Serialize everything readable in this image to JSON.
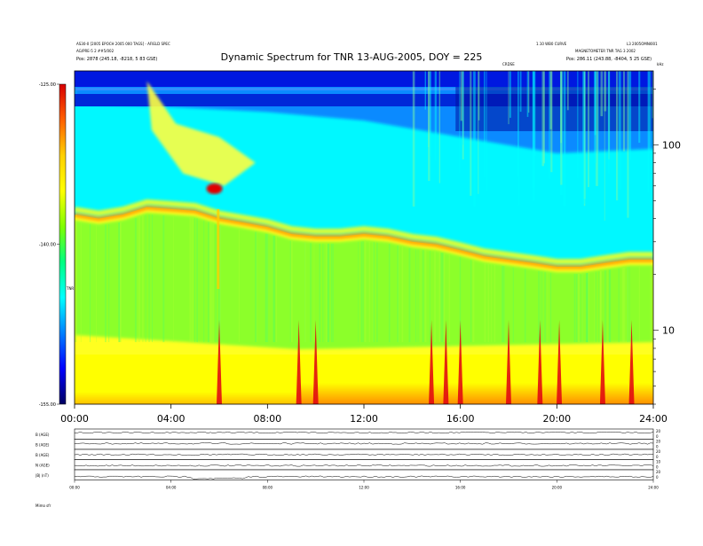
{
  "header": {
    "title": "Dynamic Spectrum for TNR 13-AUG-2005, DOY = 225",
    "left_lines": [
      "AS30-0 [2005 EPOCH 2005 000 TAGS] - AFIELD SPEC",
      "AG/PRE-5 2 ##5/002",
      "Pos: 2878 (245.18, -8218, 5 83 GSE)"
    ],
    "right_lines": [
      "1.10 WB0 CURVE",
      "MAGNETOMETER TNR TAG 3 2002",
      "Pos: 286.11 (243.88, -8404, 5 25 GSE)"
    ],
    "right_top": "L3 2005OMNI001",
    "center_tag": "CRDSE",
    "khz_label": "kHz"
  },
  "chart_data": [
    {
      "type": "heatmap",
      "title": "Dynamic Spectrum for TNR 13-AUG-2005, DOY = 225",
      "x_ticks": [
        "00:00",
        "04:00",
        "08:00",
        "12:00",
        "16:00",
        "20:00",
        "24:00"
      ],
      "x_range_hours": [
        0,
        24
      ],
      "y_right_ticks": [
        "100",
        "10"
      ],
      "y_right_values_khz": [
        100,
        10
      ],
      "y_range_khz": [
        4,
        250
      ],
      "y_scale": "log",
      "colorbar": {
        "ticks": [
          "-125.00",
          "-140.00",
          "-155.00"
        ],
        "values": [
          -125,
          -140,
          -155
        ],
        "label": "TNR",
        "colors": [
          "#d80000",
          "#ff6000",
          "#ffd000",
          "#ffff00",
          "#80ff00",
          "#00ff80",
          "#00ffff",
          "#0080ff",
          "#0000ff",
          "#000060"
        ]
      },
      "features": {
        "plasma_line_khz": [
          {
            "t": 0,
            "f": 42
          },
          {
            "t": 1,
            "f": 40
          },
          {
            "t": 2,
            "f": 42
          },
          {
            "t": 3,
            "f": 46
          },
          {
            "t": 4,
            "f": 45
          },
          {
            "t": 5,
            "f": 44
          },
          {
            "t": 6,
            "f": 40
          },
          {
            "t": 7,
            "f": 38
          },
          {
            "t": 8,
            "f": 36
          },
          {
            "t": 9,
            "f": 33
          },
          {
            "t": 10,
            "f": 32
          },
          {
            "t": 11,
            "f": 32
          },
          {
            "t": 12,
            "f": 33
          },
          {
            "t": 13,
            "f": 32
          },
          {
            "t": 14,
            "f": 30
          },
          {
            "t": 15,
            "f": 29
          },
          {
            "t": 16,
            "f": 27
          },
          {
            "t": 17,
            "f": 25
          },
          {
            "t": 18,
            "f": 24
          },
          {
            "t": 19,
            "f": 23
          },
          {
            "t": 20,
            "f": 22
          },
          {
            "t": 21,
            "f": 22
          },
          {
            "t": 22,
            "f": 23
          },
          {
            "t": 23,
            "f": 24
          },
          {
            "t": 24,
            "f": 24
          }
        ],
        "burst_hours": [
          6.0,
          9.3,
          10.0,
          14.8,
          15.4,
          16.0,
          18.0,
          19.3,
          20.1,
          21.9,
          23.1
        ]
      }
    },
    {
      "type": "line",
      "title": "",
      "x_ticks": [
        "00:00",
        "04:00",
        "08:00",
        "12:00",
        "16:00",
        "20:00",
        "24:00"
      ],
      "panels": [
        {
          "name": "B (AGE)",
          "right_ticks": [
            "20",
            "0"
          ]
        },
        {
          "name": "B (AGE)",
          "right_ticks": [
            "20",
            "0"
          ]
        },
        {
          "name": "B (AGE)",
          "right_ticks": [
            "20",
            "0"
          ]
        },
        {
          "name": "N (AGE)",
          "right_ticks": [
            "10",
            "0"
          ]
        },
        {
          "name": "|B| (nT)",
          "right_ticks": [
            "20",
            "0"
          ]
        }
      ]
    }
  ],
  "footer": {
    "left": "Mimo  sfr"
  }
}
